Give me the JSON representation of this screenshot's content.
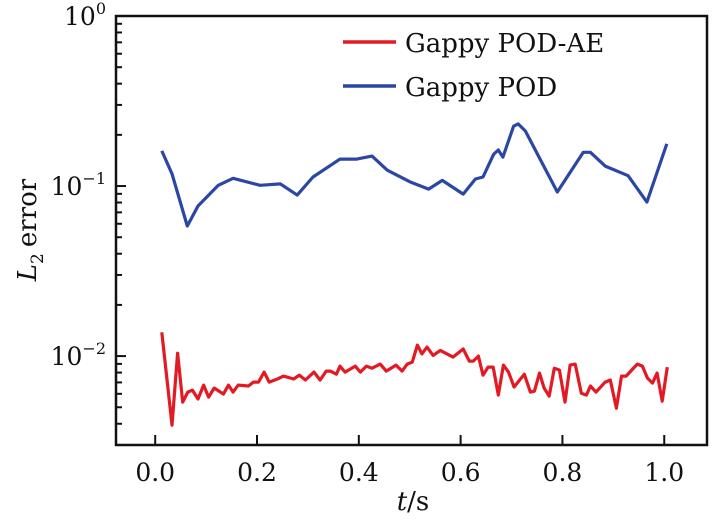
{
  "chart_data": {
    "type": "line",
    "title": "",
    "xlabel": "t/s",
    "xlabel_italic_part": "t",
    "xlabel_unit_part": "/s",
    "ylabel": "L2 error",
    "ylabel_symbol": "L",
    "ylabel_subscript": "2",
    "ylabel_rest": "error",
    "yscale": "log",
    "xlim": [
      -0.077,
      1.084
    ],
    "ylim": [
      0.003,
      1.0
    ],
    "xticks": [
      0.0,
      0.2,
      0.4,
      0.6,
      0.8,
      1.0
    ],
    "xtick_labels": [
      "0.0",
      "0.2",
      "0.4",
      "0.6",
      "0.8",
      "1.0"
    ],
    "yticks": [
      1.0,
      0.1,
      0.01
    ],
    "ytick_labels": [
      {
        "base": "10",
        "exp": "0"
      },
      {
        "base": "10",
        "exp": "−1"
      },
      {
        "base": "10",
        "exp": "−2"
      }
    ],
    "grid": false,
    "legend_position": "top-right",
    "series": [
      {
        "name": "Gappy POD-AE",
        "color": "#e31a24",
        "x": [
          0.013,
          0.033,
          0.044,
          0.054,
          0.064,
          0.073,
          0.084,
          0.095,
          0.105,
          0.116,
          0.134,
          0.144,
          0.153,
          0.163,
          0.183,
          0.193,
          0.203,
          0.214,
          0.224,
          0.24,
          0.252,
          0.272,
          0.283,
          0.295,
          0.312,
          0.324,
          0.336,
          0.344,
          0.356,
          0.363,
          0.373,
          0.393,
          0.403,
          0.415,
          0.426,
          0.442,
          0.454,
          0.473,
          0.485,
          0.495,
          0.505,
          0.515,
          0.524,
          0.534,
          0.546,
          0.56,
          0.585,
          0.605,
          0.617,
          0.625,
          0.635,
          0.644,
          0.654,
          0.664,
          0.674,
          0.684,
          0.694,
          0.705,
          0.725,
          0.737,
          0.745,
          0.755,
          0.764,
          0.774,
          0.784,
          0.794,
          0.805,
          0.815,
          0.825,
          0.837,
          0.847,
          0.855,
          0.866,
          0.884,
          0.894,
          0.906,
          0.916,
          0.925,
          0.947,
          0.957,
          0.967,
          0.977,
          0.986,
          0.996,
          1.006
        ],
        "values": [
          0.0138,
          0.00393,
          0.0104,
          0.00536,
          0.00614,
          0.00631,
          0.00559,
          0.00675,
          0.00574,
          0.00649,
          0.00598,
          0.00675,
          0.00614,
          0.00675,
          0.00667,
          0.00703,
          0.00703,
          0.00805,
          0.00703,
          0.00733,
          0.00763,
          0.00733,
          0.00773,
          0.00723,
          0.00805,
          0.00723,
          0.00816,
          0.00816,
          0.00783,
          0.00873,
          0.00805,
          0.00873,
          0.00805,
          0.00873,
          0.00849,
          0.00897,
          0.00816,
          0.00885,
          0.00816,
          0.00897,
          0.00922,
          0.0116,
          0.0103,
          0.0113,
          0.0101,
          0.0108,
          0.00987,
          0.011,
          0.00935,
          0.00935,
          0.01,
          0.00773,
          0.00861,
          0.00861,
          0.0059,
          0.00885,
          0.00805,
          0.00658,
          0.00783,
          0.00614,
          0.00622,
          0.00794,
          0.00649,
          0.00582,
          0.00849,
          0.00828,
          0.00536,
          0.00885,
          0.00897,
          0.00605,
          0.0059,
          0.00667,
          0.00614,
          0.00703,
          0.00723,
          0.00494,
          0.00763,
          0.00763,
          0.00897,
          0.00873,
          0.00743,
          0.00694,
          0.00794,
          0.00543,
          0.00861
        ]
      },
      {
        "name": "Gappy POD",
        "color": "#2b47a3",
        "x": [
          0.013,
          0.033,
          0.063,
          0.084,
          0.124,
          0.153,
          0.206,
          0.246,
          0.279,
          0.31,
          0.363,
          0.396,
          0.426,
          0.456,
          0.5,
          0.537,
          0.564,
          0.605,
          0.629,
          0.644,
          0.665,
          0.674,
          0.683,
          0.704,
          0.713,
          0.727,
          0.79,
          0.841,
          0.855,
          0.884,
          0.929,
          0.966,
          1.005
        ],
        "values": [
          0.161,
          0.118,
          0.0582,
          0.0763,
          0.101,
          0.111,
          0.101,
          0.103,
          0.0885,
          0.113,
          0.144,
          0.144,
          0.15,
          0.124,
          0.106,
          0.096,
          0.108,
          0.0897,
          0.11,
          0.113,
          0.154,
          0.163,
          0.148,
          0.225,
          0.232,
          0.211,
          0.0922,
          0.158,
          0.158,
          0.131,
          0.115,
          0.0805,
          0.177
        ]
      }
    ]
  }
}
